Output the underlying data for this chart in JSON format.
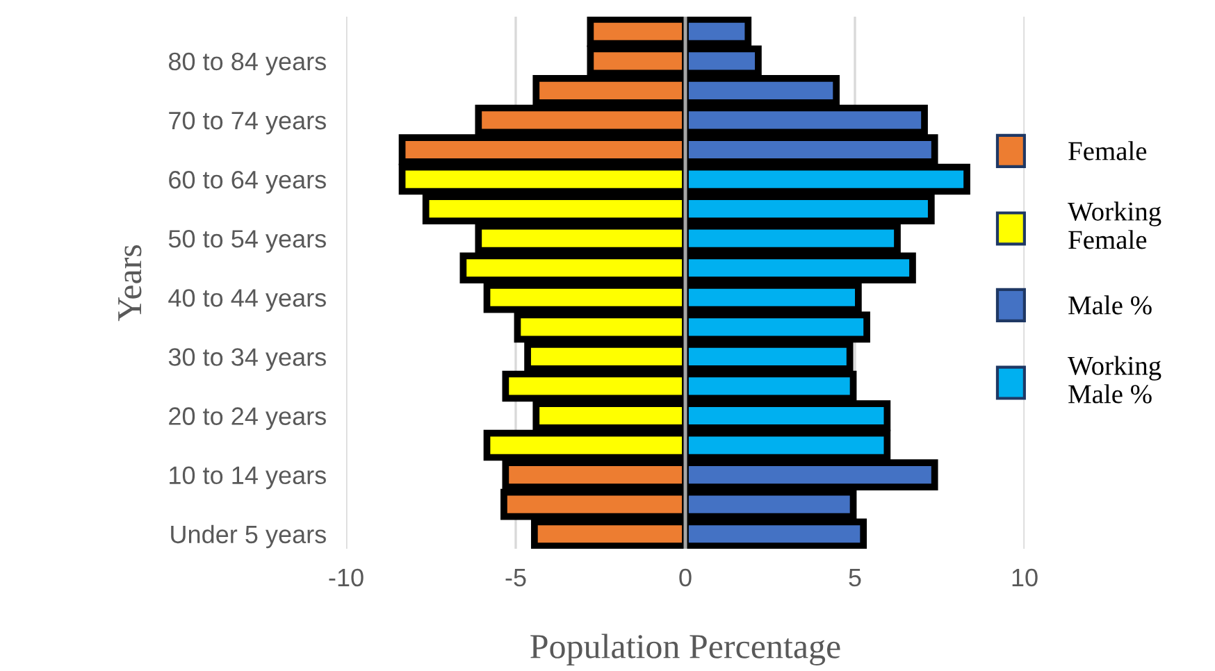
{
  "chart_data": {
    "type": "bar",
    "orientation": "horizontal",
    "stacked": true,
    "xlabel": "Population Percentage",
    "ylabel": "Years",
    "categories": [
      null,
      "80 to 84 years",
      null,
      "70 to 74 years",
      null,
      "60 to 64 years",
      null,
      "50 to 54 years",
      null,
      "40 to 44 years",
      null,
      "30 to 34 years",
      null,
      "20 to 24 years",
      null,
      "10 to 14 years",
      null,
      "Under 5 years"
    ],
    "series": [
      {
        "name": "Female",
        "color": "#ed7d31",
        "values": [
          -2.8,
          -2.8,
          -4.4,
          -6.1,
          -8.35,
          null,
          null,
          null,
          null,
          null,
          null,
          null,
          null,
          null,
          null,
          -5.3,
          -5.35,
          -4.45
        ]
      },
      {
        "name": "Working\nFemale",
        "color": "#ffff00",
        "values": [
          null,
          null,
          null,
          null,
          null,
          -8.35,
          -7.65,
          -6.1,
          -6.55,
          -5.85,
          -4.95,
          -4.65,
          -5.3,
          -4.4,
          -5.85,
          null,
          null,
          null
        ]
      },
      {
        "name": "Male %",
        "color": "#4472c4",
        "values": [
          1.85,
          2.15,
          4.45,
          7.05,
          7.35,
          null,
          null,
          null,
          null,
          null,
          null,
          null,
          null,
          null,
          null,
          7.35,
          4.95,
          5.25
        ]
      },
      {
        "name": "Working\nMale %",
        "color": "#00b0f0",
        "values": [
          null,
          null,
          null,
          null,
          null,
          8.3,
          7.25,
          6.25,
          6.7,
          5.1,
          5.35,
          4.85,
          4.95,
          5.95,
          5.95,
          null,
          null,
          null
        ]
      }
    ],
    "xlim": [
      -10,
      10
    ],
    "xticks": [
      -10,
      -5,
      0,
      5,
      10
    ],
    "grid": "x",
    "legend": "right"
  }
}
